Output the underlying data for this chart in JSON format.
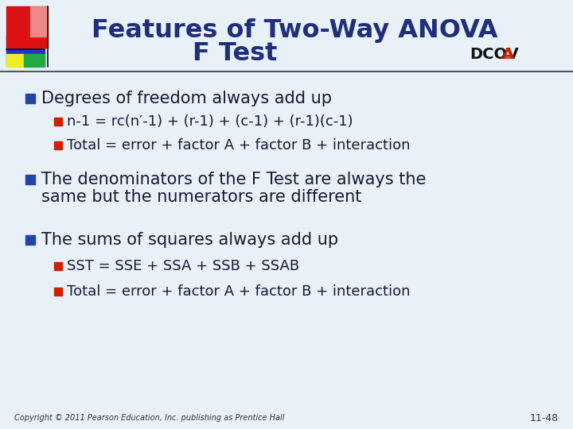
{
  "title_line1": "Features of Two-Way ANOVA",
  "title_line2": "F Test",
  "dcova_text": "DCOV",
  "dcova_a": "A",
  "background_color": "#e8f0f8",
  "title_color": "#1f2f7a",
  "text_color": "#1a1a2e",
  "bullet_color": "#2244aa",
  "sub_bullet_color": "#cc2200",
  "footer_left": "Copyright © 2011 Pearson Education, Inc. publishing as Prentice Hall",
  "footer_right": "11-48",
  "bullet1": "Degrees of freedom always add up",
  "sub1a": "n-1 = rc(n′-1) + (r-1) + (c-1) + (r-1)(c-1)",
  "sub1b": "Total = error + factor A + factor B + interaction",
  "bullet2_line1": "The denominators of the F Test are always the",
  "bullet2_line2": "same but the numerators are different",
  "bullet3": "The sums of squares always add up",
  "sub3a": "SST = SSE + SSA + SSB + SSAB",
  "sub3b": "Total = error + factor A + factor B + interaction"
}
